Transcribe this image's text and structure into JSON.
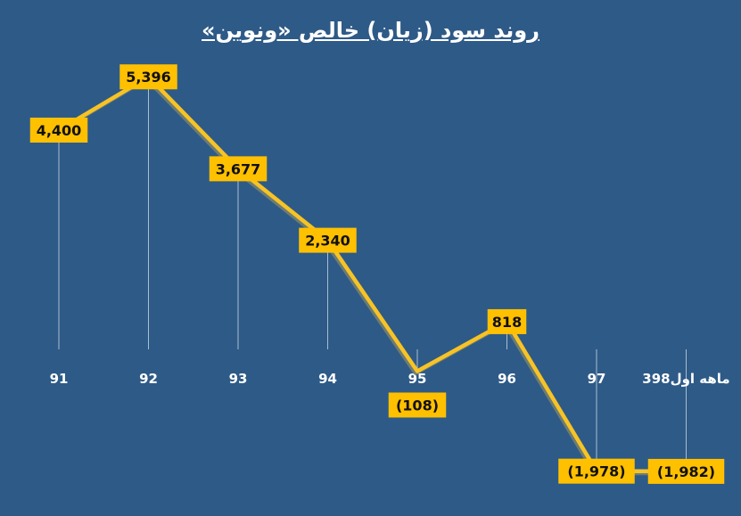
{
  "chart_data": {
    "type": "line",
    "title": "روند سود (زیان) خالص «ونوین»",
    "categories": [
      "91",
      "92",
      "93",
      "94",
      "95",
      "96",
      "97",
      "3ماهه اول98"
    ],
    "values": [
      4400,
      5396,
      3677,
      2340,
      -108,
      818,
      -1978,
      -1982
    ],
    "data_labels": [
      "4,400",
      "5,396",
      "3,677",
      "2,340",
      "(108)",
      "818",
      "(1,978)",
      "(1,982)"
    ],
    "ylim": [
      -2500,
      6000
    ],
    "grid": false,
    "colors": {
      "background": "#2e5a87",
      "line": "#f7c325",
      "label_box": "#ffc000",
      "drop_line": "#c9d6e4"
    }
  }
}
